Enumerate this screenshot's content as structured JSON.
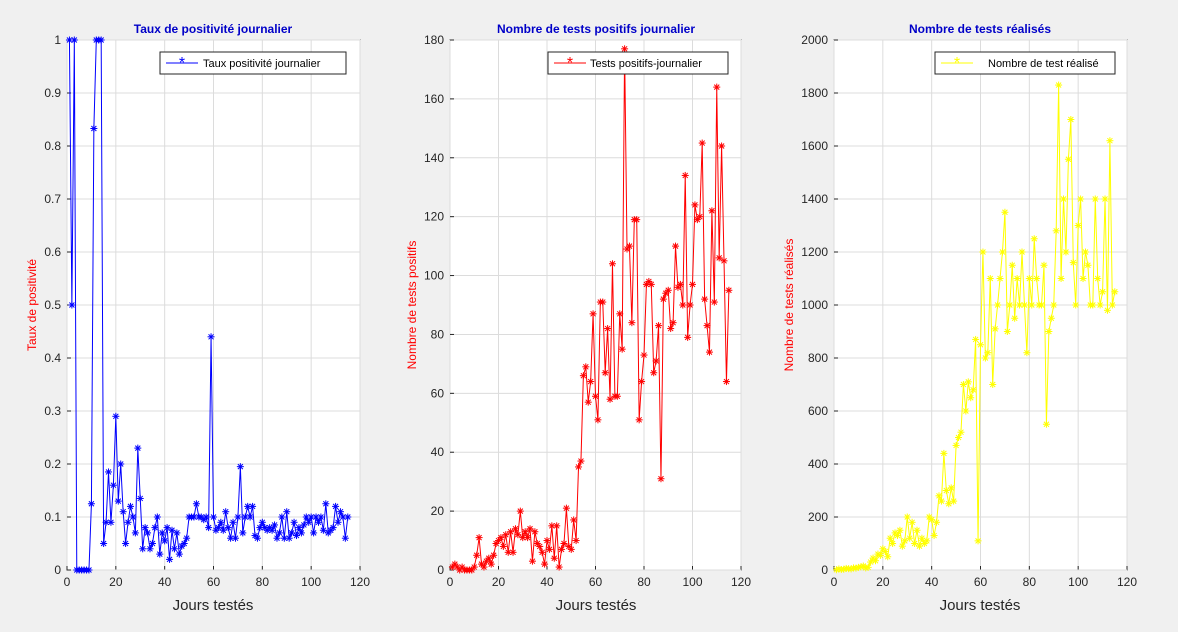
{
  "chart_data": [
    {
      "type": "line",
      "title": "Taux de positivité journalier",
      "xlabel": "Jours testés",
      "ylabel": "Taux de positivité",
      "xlim": [
        0,
        120
      ],
      "ylim": [
        0,
        1
      ],
      "xticks": [
        0,
        20,
        40,
        60,
        80,
        100,
        120
      ],
      "yticks": [
        0,
        0.1,
        0.2,
        0.3,
        0.4,
        0.5,
        0.6,
        0.7,
        0.8,
        0.9,
        1
      ],
      "grid": true,
      "legend_position": "top-right",
      "marker": "*",
      "series": [
        {
          "name": "Taux positivité journalier",
          "color": "#0000ff",
          "x": [
            1,
            2,
            3,
            4,
            5,
            6,
            7,
            8,
            9,
            10,
            11,
            12,
            13,
            14,
            15,
            16,
            17,
            18,
            19,
            20,
            21,
            22,
            23,
            24,
            25,
            26,
            27,
            28,
            29,
            30,
            31,
            32,
            33,
            34,
            35,
            36,
            37,
            38,
            39,
            40,
            41,
            42,
            43,
            44,
            45,
            46,
            47,
            48,
            49,
            50,
            51,
            52,
            53,
            54,
            55,
            56,
            57,
            58,
            59,
            60,
            61,
            62,
            63,
            64,
            65,
            66,
            67,
            68,
            69,
            70,
            71,
            72,
            73,
            74,
            75,
            76,
            77,
            78,
            79,
            80,
            81,
            82,
            83,
            84,
            85,
            86,
            87,
            88,
            89,
            90,
            91,
            92,
            93,
            94,
            95,
            96,
            97,
            98,
            99,
            100,
            101,
            102,
            103,
            104,
            105,
            106,
            107,
            108,
            109,
            110,
            111,
            112,
            113,
            114,
            115
          ],
          "y": [
            1,
            0.5,
            1,
            0,
            0,
            0,
            0,
            0,
            0,
            0.125,
            0.833,
            1,
            1,
            1,
            0.05,
            0.09,
            0.185,
            0.09,
            0.16,
            0.29,
            0.13,
            0.2,
            0.11,
            0.05,
            0.09,
            0.12,
            0.1,
            0.07,
            0.23,
            0.135,
            0.04,
            0.08,
            0.07,
            0.04,
            0.05,
            0.08,
            0.1,
            0.03,
            0.07,
            0.055,
            0.08,
            0.02,
            0.075,
            0.04,
            0.07,
            0.03,
            0.045,
            0.05,
            0.06,
            0.1,
            0.1,
            0.1,
            0.125,
            0.1,
            0.1,
            0.095,
            0.1,
            0.08,
            0.44,
            0.1,
            0.075,
            0.08,
            0.09,
            0.075,
            0.11,
            0.08,
            0.06,
            0.09,
            0.06,
            0.1,
            0.195,
            0.07,
            0.1,
            0.12,
            0.1,
            0.12,
            0.065,
            0.06,
            0.08,
            0.09,
            0.08,
            0.075,
            0.08,
            0.075,
            0.085,
            0.06,
            0.07,
            0.1,
            0.06,
            0.11,
            0.06,
            0.07,
            0.09,
            0.065,
            0.08,
            0.07,
            0.085,
            0.1,
            0.09,
            0.1,
            0.07,
            0.1,
            0.09,
            0.1,
            0.075,
            0.125,
            0.07,
            0.075,
            0.08,
            0.12,
            0.09,
            0.11,
            0.1,
            0.06,
            0.1
          ]
        }
      ]
    },
    {
      "type": "line",
      "title": "Nombre de tests positifs journalier",
      "xlabel": "Jours testés",
      "ylabel": "Nombre de tests positifs",
      "xlim": [
        0,
        120
      ],
      "ylim": [
        0,
        180
      ],
      "xticks": [
        0,
        20,
        40,
        60,
        80,
        100,
        120
      ],
      "yticks": [
        0,
        20,
        40,
        60,
        80,
        100,
        120,
        140,
        160,
        180
      ],
      "grid": true,
      "legend_position": "top-right",
      "marker": "*",
      "series": [
        {
          "name": "Tests positifs-journalier",
          "color": "#ff0000",
          "x": [
            1,
            2,
            3,
            4,
            5,
            6,
            7,
            8,
            9,
            10,
            11,
            12,
            13,
            14,
            15,
            16,
            17,
            18,
            19,
            20,
            21,
            22,
            23,
            24,
            25,
            26,
            27,
            28,
            29,
            30,
            31,
            32,
            33,
            34,
            35,
            36,
            37,
            38,
            39,
            40,
            41,
            42,
            43,
            44,
            45,
            46,
            47,
            48,
            49,
            50,
            51,
            52,
            53,
            54,
            55,
            56,
            57,
            58,
            59,
            60,
            61,
            62,
            63,
            64,
            65,
            66,
            67,
            68,
            69,
            70,
            71,
            72,
            73,
            74,
            75,
            76,
            77,
            78,
            79,
            80,
            81,
            82,
            83,
            84,
            85,
            86,
            87,
            88,
            89,
            90,
            91,
            92,
            93,
            94,
            95,
            96,
            97,
            98,
            99,
            100,
            101,
            102,
            103,
            104,
            105,
            106,
            107,
            108,
            109,
            110,
            111,
            112,
            113,
            114,
            115
          ],
          "y": [
            1,
            2,
            1,
            0,
            1,
            0,
            0,
            0,
            0,
            1,
            5,
            11,
            2,
            1,
            3,
            4,
            2,
            5,
            9,
            10,
            11,
            8,
            12,
            6,
            13,
            6,
            14,
            12,
            20,
            11,
            13,
            11,
            14,
            3,
            13,
            9,
            8,
            6,
            2,
            10,
            7,
            15,
            4,
            15,
            1,
            7,
            9,
            21,
            8,
            7,
            17,
            10,
            35,
            37,
            66,
            69,
            57,
            64,
            87,
            59,
            51,
            91,
            91,
            67,
            82,
            58,
            104,
            59,
            59,
            87,
            75,
            177,
            109,
            110,
            84,
            119,
            119,
            51,
            64,
            73,
            97,
            98,
            97,
            67,
            71,
            83,
            31,
            92,
            94,
            95,
            82,
            84,
            110,
            96,
            97,
            90,
            134,
            79,
            90,
            97,
            124,
            119,
            120,
            145,
            92,
            83,
            74,
            122,
            91,
            164,
            106,
            144,
            105,
            64,
            95
          ]
        }
      ]
    },
    {
      "type": "line",
      "title": "Nombre de tests réalisés",
      "xlabel": "Jours testés",
      "ylabel": "Nombre de tests réalisés",
      "xlim": [
        0,
        120
      ],
      "ylim": [
        0,
        2000
      ],
      "xticks": [
        0,
        20,
        40,
        60,
        80,
        100,
        120
      ],
      "yticks": [
        0,
        200,
        400,
        600,
        800,
        1000,
        1200,
        1400,
        1600,
        1800,
        2000
      ],
      "grid": true,
      "legend_position": "top-right",
      "marker": "*",
      "series": [
        {
          "name": "Nombre de test réalisé",
          "color": "#ffff00",
          "x": [
            1,
            2,
            3,
            4,
            5,
            6,
            7,
            8,
            9,
            10,
            11,
            12,
            13,
            14,
            15,
            16,
            17,
            18,
            19,
            20,
            21,
            22,
            23,
            24,
            25,
            26,
            27,
            28,
            29,
            30,
            31,
            32,
            33,
            34,
            35,
            36,
            37,
            38,
            39,
            40,
            41,
            42,
            43,
            44,
            45,
            46,
            47,
            48,
            49,
            50,
            51,
            52,
            53,
            54,
            55,
            56,
            57,
            58,
            59,
            60,
            61,
            62,
            63,
            64,
            65,
            66,
            67,
            68,
            69,
            70,
            71,
            72,
            73,
            74,
            75,
            76,
            77,
            78,
            79,
            80,
            81,
            82,
            83,
            84,
            85,
            86,
            87,
            88,
            89,
            90,
            91,
            92,
            93,
            94,
            95,
            96,
            97,
            98,
            99,
            100,
            101,
            102,
            103,
            104,
            105,
            106,
            107,
            108,
            109,
            110,
            111,
            112,
            113,
            114,
            115
          ],
          "y": [
            1,
            4,
            2,
            3,
            6,
            5,
            4,
            8,
            7,
            10,
            12,
            15,
            8,
            10,
            30,
            45,
            35,
            60,
            55,
            80,
            70,
            50,
            120,
            100,
            140,
            130,
            150,
            90,
            110,
            200,
            120,
            180,
            100,
            150,
            90,
            120,
            100,
            110,
            200,
            190,
            130,
            180,
            280,
            260,
            440,
            300,
            250,
            310,
            260,
            470,
            500,
            520,
            700,
            600,
            710,
            650,
            680,
            870,
            110,
            850,
            1200,
            800,
            820,
            1100,
            700,
            910,
            1000,
            1100,
            1200,
            1350,
            900,
            1000,
            1150,
            950,
            1100,
            1000,
            1200,
            1000,
            820,
            1100,
            1000,
            1250,
            1100,
            1000,
            1000,
            1150,
            550,
            900,
            950,
            1000,
            1280,
            1830,
            1100,
            1400,
            1200,
            1550,
            1700,
            1160,
            1000,
            1300,
            1400,
            1100,
            1200,
            1150,
            1000,
            1000,
            1400,
            1100,
            1000,
            1050,
            1400,
            980,
            1620,
            1000,
            1050
          ]
        }
      ]
    }
  ]
}
